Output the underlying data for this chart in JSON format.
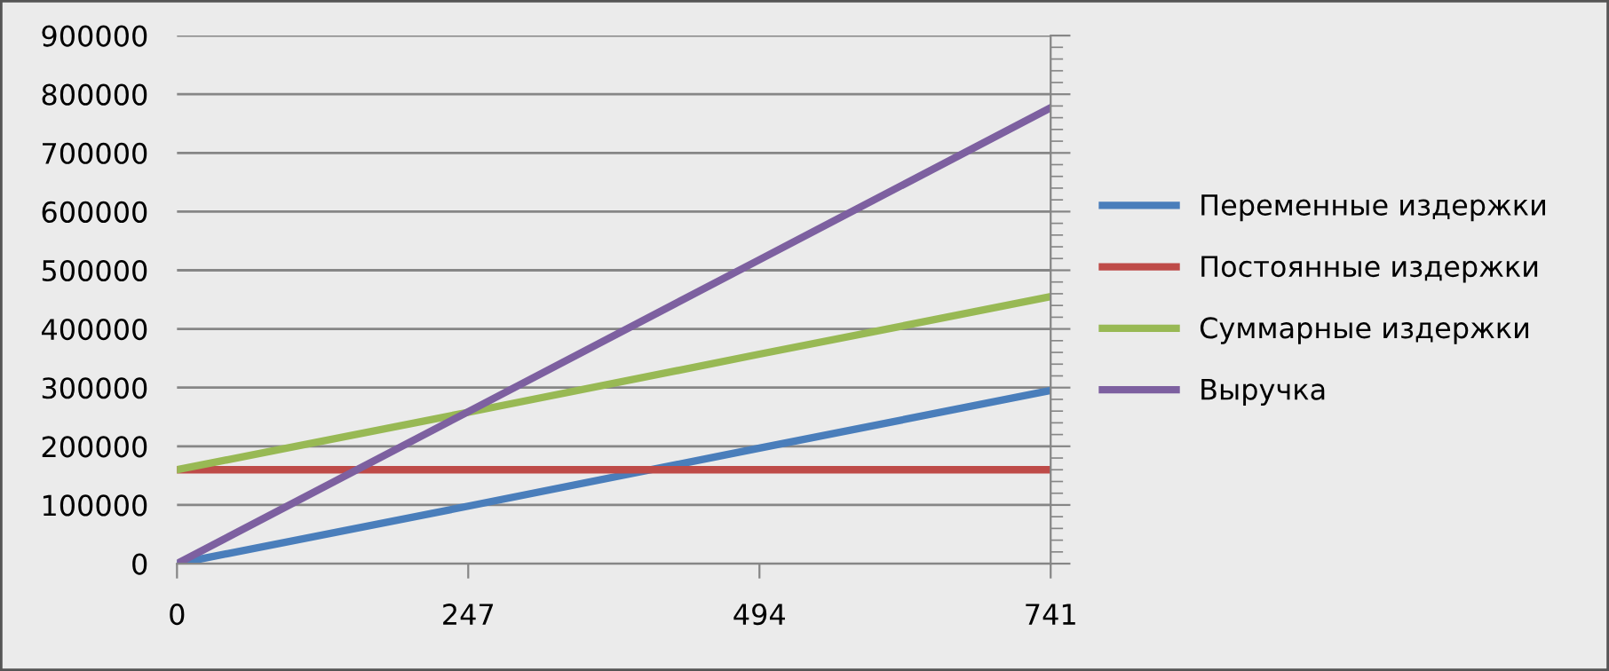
{
  "chart_data": {
    "type": "line",
    "x": [
      0,
      247,
      494,
      741
    ],
    "series": [
      {
        "name": "Переменные издержки",
        "color": "#4a7ebb",
        "values": [
          0,
          98000,
          197000,
          295000
        ]
      },
      {
        "name": "Постоянные издержки",
        "color": "#be4b48",
        "values": [
          160000,
          160000,
          160000,
          160000
        ]
      },
      {
        "name": "Суммарные издержки",
        "color": "#98b954",
        "values": [
          160000,
          258000,
          357000,
          455000
        ]
      },
      {
        "name": "Выручка",
        "color": "#7d60a0",
        "values": [
          0,
          259000,
          518000,
          777000
        ]
      }
    ],
    "xlim": [
      0,
      741
    ],
    "xticks": [
      0,
      247,
      494,
      741
    ],
    "ylim": [
      0,
      900000
    ],
    "yticks": [
      0,
      100000,
      200000,
      300000,
      400000,
      500000,
      600000,
      700000,
      800000,
      900000
    ],
    "grid": "y",
    "legend": "right",
    "marker": "none",
    "line_style": "solid"
  }
}
